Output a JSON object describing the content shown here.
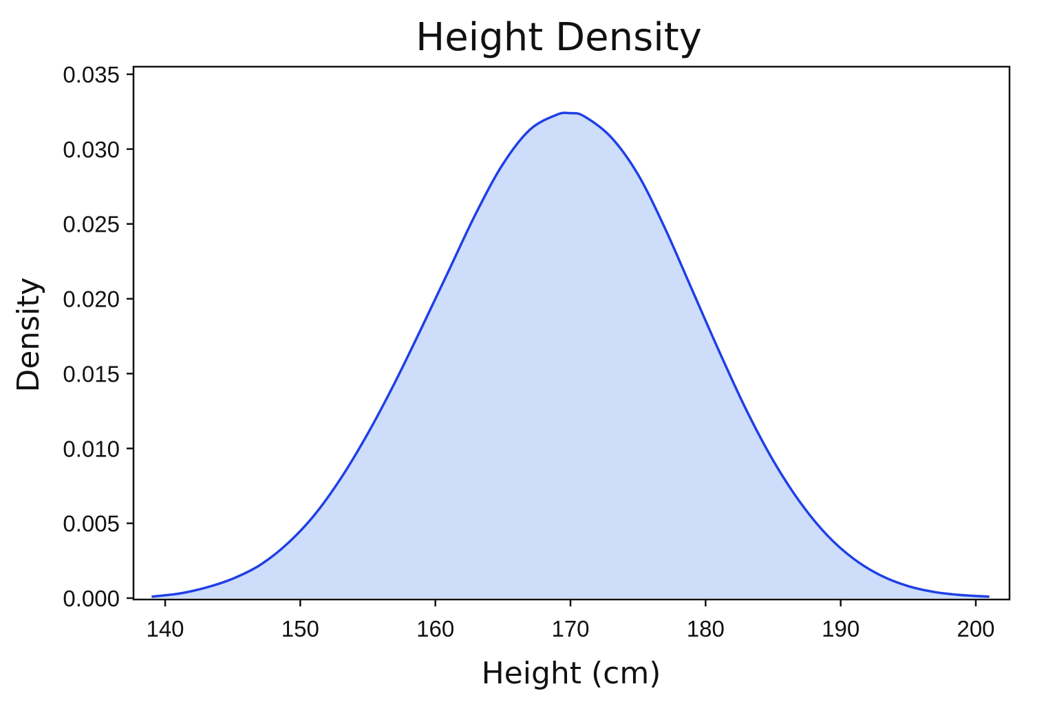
{
  "chart_data": {
    "type": "area",
    "title": "Height Density",
    "xlabel": "Height (cm)",
    "ylabel": "Density",
    "xlim": [
      138,
      203
    ],
    "ylim": [
      0,
      0.035
    ],
    "x_ticks": [
      140,
      150,
      160,
      170,
      180,
      190,
      200
    ],
    "y_ticks": [
      0.0,
      0.005,
      0.01,
      0.015,
      0.02,
      0.025,
      0.03,
      0.035
    ],
    "x_tick_labels": [
      "140",
      "150",
      "160",
      "170",
      "180",
      "190",
      "200"
    ],
    "y_tick_labels": [
      "0.000",
      "0.005",
      "0.010",
      "0.015",
      "0.020",
      "0.025",
      "0.030",
      "0.035"
    ],
    "grid": false,
    "legend": "none",
    "colors": {
      "line": "#1f3fe6",
      "fill": "#cdddfa",
      "axis": "#111111"
    },
    "series": [
      {
        "x": [
          139,
          141,
          143,
          145,
          147,
          149,
          151,
          153,
          155,
          157,
          159,
          161,
          163,
          165,
          167,
          169,
          170,
          171,
          173,
          175,
          177,
          179,
          181,
          183,
          185,
          187,
          189,
          191,
          193,
          195,
          197,
          199,
          201
        ],
        "values": [
          0.0001,
          0.0003,
          0.0007,
          0.0013,
          0.0022,
          0.0036,
          0.0055,
          0.008,
          0.011,
          0.0144,
          0.0181,
          0.0219,
          0.0257,
          0.029,
          0.0313,
          0.0323,
          0.0324,
          0.0322,
          0.0308,
          0.0283,
          0.0247,
          0.0206,
          0.0165,
          0.0126,
          0.0092,
          0.0064,
          0.0042,
          0.0026,
          0.0015,
          0.0008,
          0.0004,
          0.0002,
          0.0001
        ]
      }
    ]
  }
}
